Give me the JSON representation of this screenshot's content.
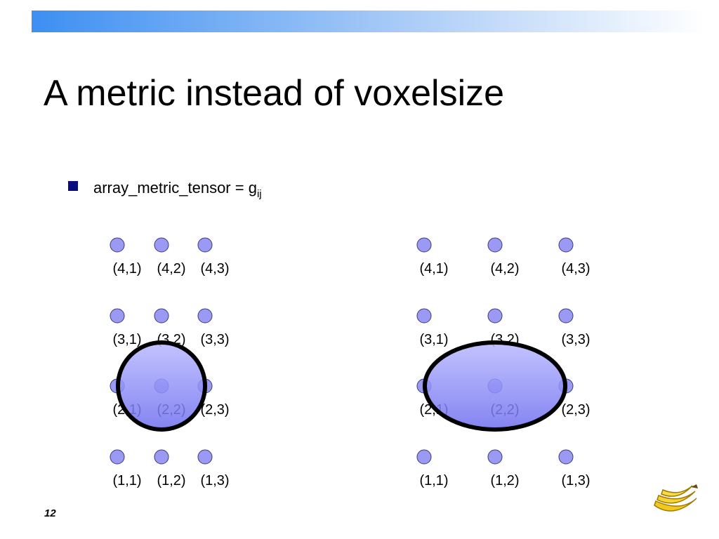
{
  "title": "A metric instead of voxelsize",
  "bullet": {
    "text": "array_metric_tensor = g",
    "subscript": "ij"
  },
  "grids": [
    {
      "rows": [
        [
          "(4,1)",
          "(4,2)",
          "(4,3)"
        ],
        [
          "(3,1)",
          "(3,2)",
          "(3,3)"
        ],
        [
          "(2,1)",
          "(2,2)",
          "(2,3)"
        ],
        [
          "(1,1)",
          "(1,2)",
          "(1,3)"
        ]
      ]
    },
    {
      "rows": [
        [
          "(4,1)",
          "(4,2)",
          "(4,3)"
        ],
        [
          "(3,1)",
          "(3,2)",
          "(3,3)"
        ],
        [
          "(2,1)",
          "(2,2)",
          "(2,3)"
        ],
        [
          "(1,1)",
          "(1,2)",
          "(1,3)"
        ]
      ]
    }
  ],
  "page_number": "12"
}
